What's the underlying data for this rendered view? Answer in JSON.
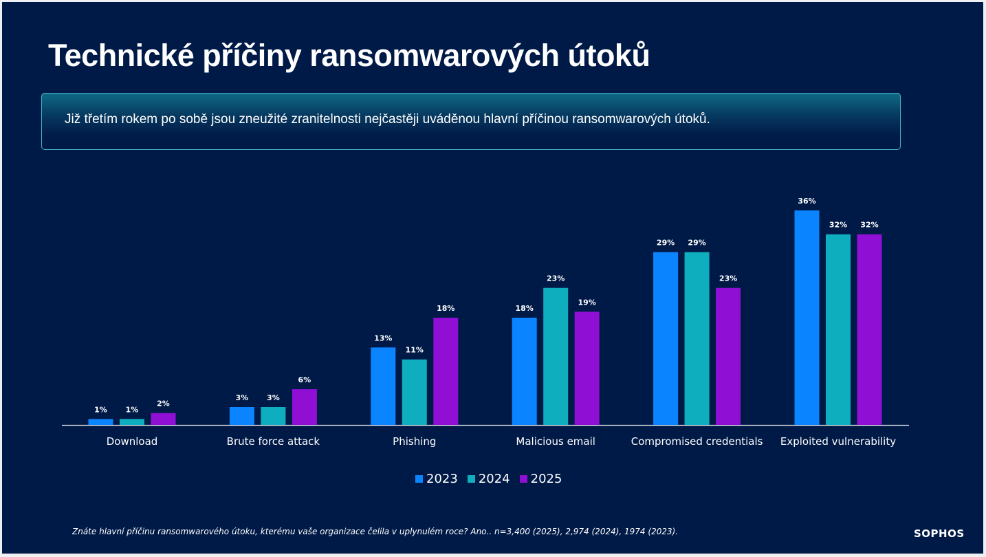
{
  "slide": {
    "title": "Technické příčiny ransomwarových útoků",
    "callout": "Již třetím rokem po sobě jsou zneužité zranitelnosti nejčastěji uváděnou hlavní příčinou ransomwarových útoků.",
    "footnote": "Znáte hlavní příčinu ransomwarového útoku, kterému vaše organizace čelila v uplynulém roce? Ano..  n=3,400 (2025), 2,974 (2024), 1974 (2023).",
    "logo": "SOPHOS"
  },
  "chart_data": {
    "type": "bar",
    "title": "Technické příčiny ransomwarových útoků",
    "xlabel": "",
    "ylabel": "",
    "ylim": [
      0,
      36
    ],
    "grid": false,
    "legend_position": "bottom-center",
    "categories": [
      "Download",
      "Brute force attack",
      "Phishing",
      "Malicious email",
      "Compromised credentials",
      "Exploited vulnerability"
    ],
    "series": [
      {
        "name": "2023",
        "color": "#0a84ff",
        "values": [
          1,
          3,
          13,
          18,
          29,
          36
        ],
        "labels": [
          "1%",
          "3%",
          "13%",
          "18%",
          "29%",
          "36%"
        ]
      },
      {
        "name": "2024",
        "color": "#0eaebf",
        "values": [
          1,
          3,
          11,
          23,
          29,
          32
        ],
        "labels": [
          "1%",
          "3%",
          "11%",
          "23%",
          "29%",
          "32%"
        ]
      },
      {
        "name": "2025",
        "color": "#8f10d4",
        "values": [
          2,
          6,
          18,
          19,
          23,
          32
        ],
        "labels": [
          "2%",
          "6%",
          "18%",
          "19%",
          "23%",
          "32%"
        ]
      }
    ]
  }
}
